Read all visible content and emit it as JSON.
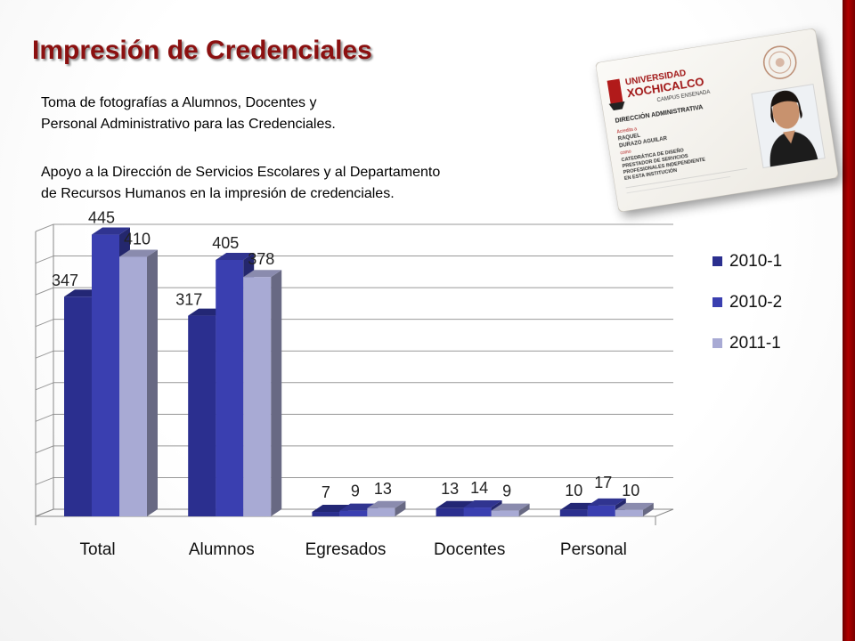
{
  "slide": {
    "title": "Impresión de Credenciales",
    "paragraph1": [
      "Toma de fotografías a Alumnos, Docentes y",
      "Personal Administrativo para las Credenciales."
    ],
    "paragraph2": [
      "Apoyo a la Dirección de Servicios Escolares y al Departamento",
      "de Recursos Humanos en la impresión de credenciales."
    ]
  },
  "id_card": {
    "university_line1": "UNIVERSIDAD",
    "university_line2": "XOCHICALCO",
    "campus": "CAMPUS ENSENADA",
    "department": "DIRECCIÓN ADMINISTRATIVA",
    "acredita": "Acredita a",
    "name_line1": "RAQUEL",
    "name_line2": "DURAZO AGUILAR",
    "role_label": "como",
    "role_lines": [
      "CATEDRÁTICA DE DISEÑO",
      "PRESTADOR DE SERVICIOS",
      "PROFESIONALES INDEPENDIENTE",
      "EN ESTA INSTITUCIÓN"
    ]
  },
  "colors": {
    "title": "#8b1010",
    "accent_bar": "#9a0000",
    "series": [
      "#2b2f8f",
      "#3a3fb0",
      "#a8aad4"
    ]
  },
  "chart_data": {
    "type": "bar",
    "style": "3d-clustered-column",
    "categories": [
      "Total",
      "Alumnos",
      "Egresados",
      "Docentes",
      "Personal"
    ],
    "series": [
      {
        "name": "2010-1",
        "values": [
          347,
          317,
          7,
          13,
          10
        ]
      },
      {
        "name": "2010-2",
        "values": [
          445,
          405,
          9,
          14,
          17
        ]
      },
      {
        "name": "2011-1",
        "values": [
          410,
          378,
          13,
          9,
          10
        ]
      }
    ],
    "ylim": [
      0,
      450
    ],
    "y_grid_step": 50,
    "grid": true,
    "y_tick_labels_shown": false,
    "data_labels": true,
    "legend_position": "right"
  }
}
